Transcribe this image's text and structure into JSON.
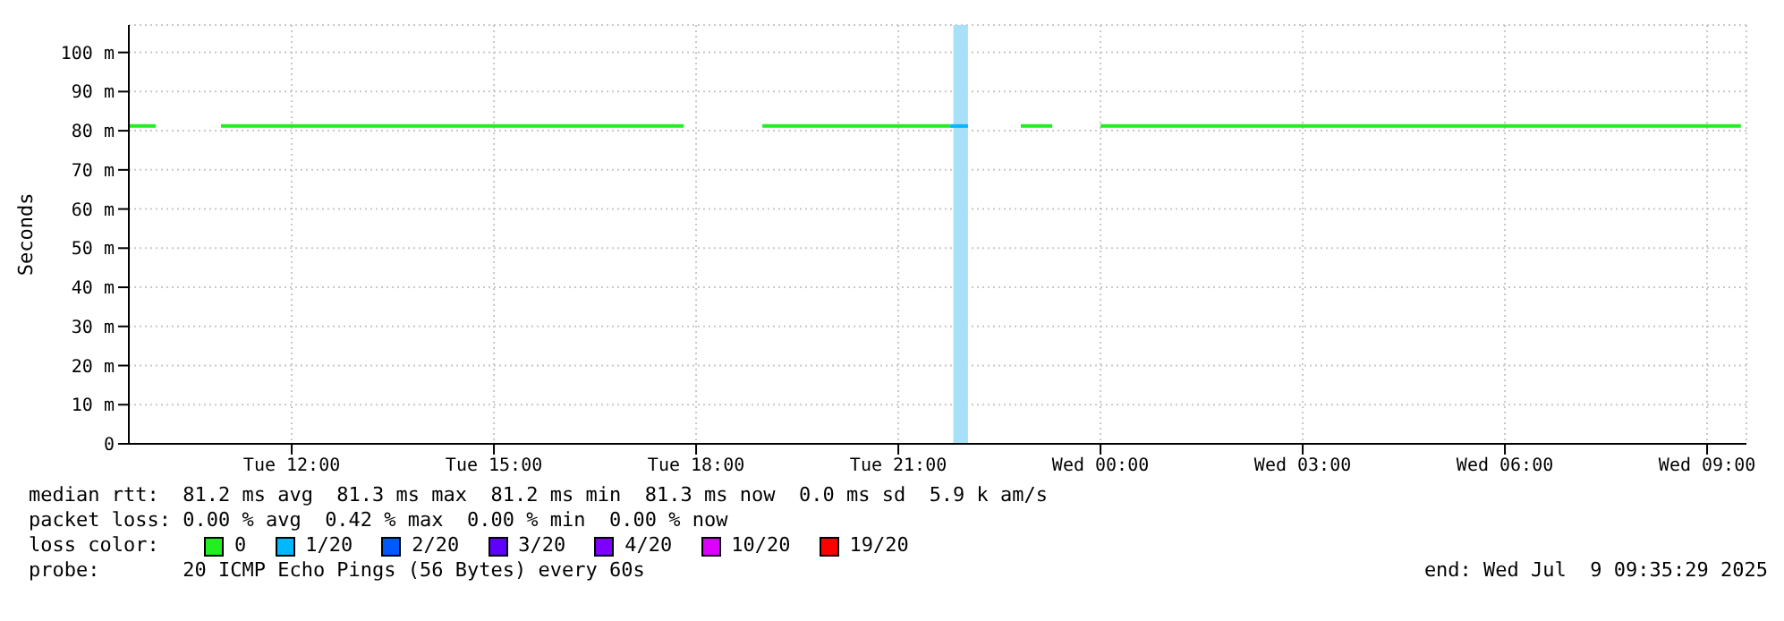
{
  "chart_data": {
    "type": "line",
    "ylabel": "Seconds",
    "xlim": [
      "2025-07-08T09:35",
      "2025-07-09T09:35"
    ],
    "xticks": [
      {
        "value": "2025-07-08T12:00",
        "label": "Tue 12:00"
      },
      {
        "value": "2025-07-08T15:00",
        "label": "Tue 15:00"
      },
      {
        "value": "2025-07-08T18:00",
        "label": "Tue 18:00"
      },
      {
        "value": "2025-07-08T21:00",
        "label": "Tue 21:00"
      },
      {
        "value": "2025-07-09T00:00",
        "label": "Wed 00:00"
      },
      {
        "value": "2025-07-09T03:00",
        "label": "Wed 03:00"
      },
      {
        "value": "2025-07-09T06:00",
        "label": "Wed 06:00"
      },
      {
        "value": "2025-07-09T09:00",
        "label": "Wed 09:00"
      }
    ],
    "ylim": [
      0,
      107
    ],
    "yticks": [
      0,
      {
        "value": 10,
        "label": "10 m"
      },
      {
        "value": 20,
        "label": "20 m"
      },
      {
        "value": 30,
        "label": "30 m"
      },
      {
        "value": 40,
        "label": "40 m"
      },
      {
        "value": 50,
        "label": "50 m"
      },
      {
        "value": 60,
        "label": "60 m"
      },
      {
        "value": 70,
        "label": "70 m"
      },
      {
        "value": 80,
        "label": "80 m"
      },
      {
        "value": 90,
        "label": "90 m"
      },
      {
        "value": 100,
        "label": "100 m"
      }
    ],
    "grid": true,
    "legend": "bottom",
    "legend_title": "loss color:",
    "marker": "none",
    "series": [
      {
        "name": "0",
        "color": "#22ee22",
        "x": [
          "2025-07-08T09:35",
          "2025-07-08T09:59",
          "2025-07-08T10:30",
          "2025-07-08T10:57",
          "2025-07-08T17:49",
          "2025-07-08T18:20",
          "2025-07-08T18:59",
          "2025-07-08T21:46",
          "2025-07-08T22:20",
          "2025-07-08T22:49",
          "2025-07-08T23:17",
          "2025-07-08T23:40",
          "2025-07-09T00:00",
          "2025-07-09T09:30"
        ],
        "values": [
          81.2,
          81.2,
          null,
          81.2,
          81.2,
          null,
          81.2,
          81.2,
          null,
          81.2,
          81.2,
          null,
          81.2,
          81.2
        ]
      },
      {
        "name": "1/20",
        "color": "#00b8ff",
        "x": [
          "2025-07-08T21:46",
          "2025-07-08T22:02"
        ],
        "values": [
          81.2,
          81.2
        ]
      },
      {
        "name": "2/20",
        "color": "#0059ff"
      },
      {
        "name": "3/20",
        "color": "#5e00ff"
      },
      {
        "name": "4/20",
        "color": "#7e00ff"
      },
      {
        "name": "10/20",
        "color": "#dd00ff"
      },
      {
        "name": "19/20",
        "color": "#ff0000"
      }
    ],
    "bands": [
      {
        "axis": "x",
        "from": "2025-07-08T21:49",
        "to": "2025-07-08T22:02",
        "color": "#a8e0f8"
      }
    ],
    "annotations": [
      "median rtt:  81.2 ms avg  81.3 ms max  81.2 ms min  81.3 ms now  0.0 ms sd  5.9 k am/s",
      "packet loss: 0.00 % avg  0.42 % max  0.00 % min  0.00 % now",
      "probe:       20 ICMP Echo Pings (56 Bytes) every 60s",
      "end: Wed Jul  9 09:35:29 2025"
    ]
  }
}
